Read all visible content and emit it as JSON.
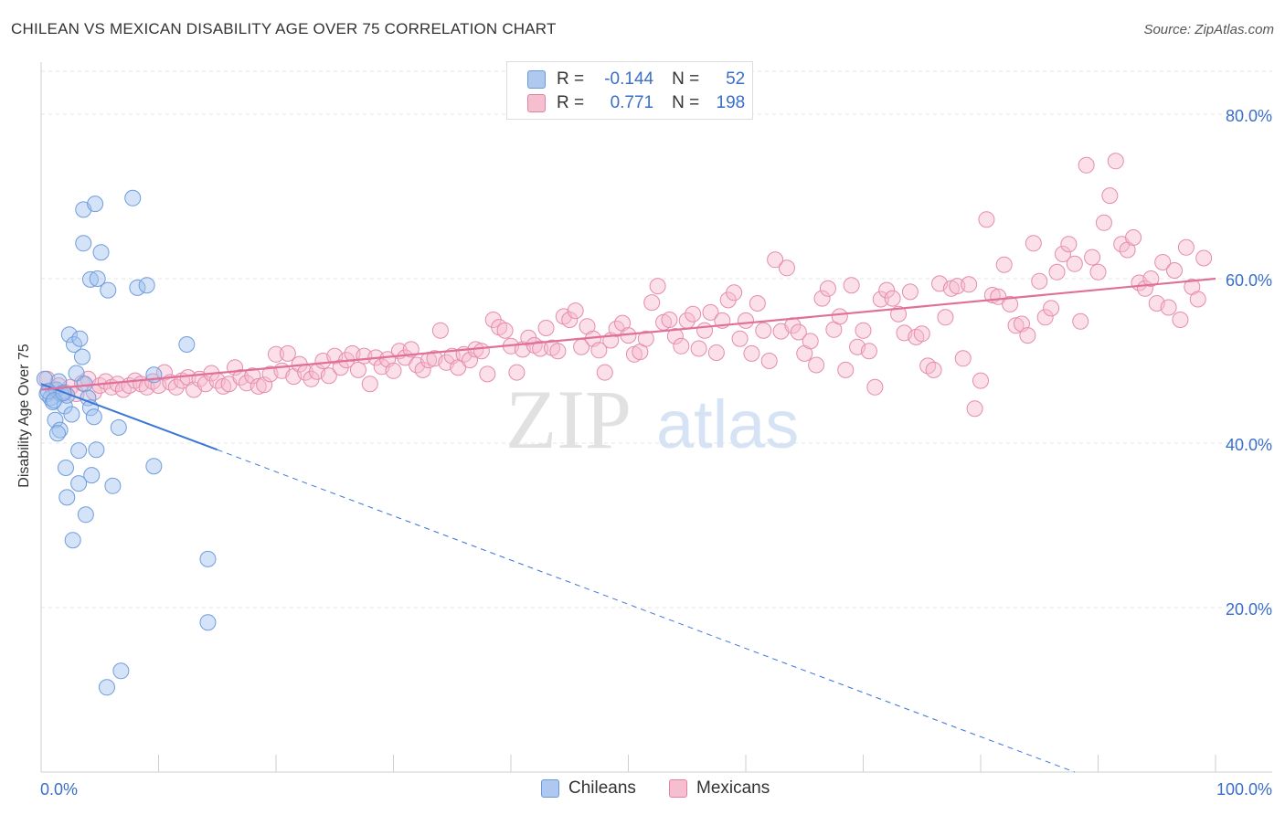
{
  "title": "CHILEAN VS MEXICAN DISABILITY AGE OVER 75 CORRELATION CHART",
  "source": "Source: ZipAtlas.com",
  "watermark": {
    "zip": "ZIP",
    "atlas": "atlas"
  },
  "legend": {
    "r_label": "R =",
    "n_label": "N =",
    "rows": [
      {
        "name": "Chileans",
        "r": "-0.144",
        "n": "52",
        "fill": "#aec8f0",
        "stroke": "#6a98dc"
      },
      {
        "name": "Mexicans",
        "r": "0.771",
        "n": "198",
        "fill": "#f6bfd0",
        "stroke": "#e67fa3"
      }
    ]
  },
  "chart_data": {
    "type": "scatter",
    "title": "CHILEAN VS MEXICAN DISABILITY AGE OVER 75 CORRELATION CHART",
    "xlabel": "",
    "ylabel": "Disability Age Over 75",
    "xlim": [
      0,
      100
    ],
    "ylim": [
      0,
      85
    ],
    "x_tick_labels": [
      "0.0%",
      "100.0%"
    ],
    "y_ticks": [
      20,
      40,
      60,
      80
    ],
    "y_tick_labels": [
      "20.0%",
      "40.0%",
      "60.0%",
      "80.0%"
    ],
    "grid": true,
    "colors": {
      "chileans": "#3a76d6",
      "mexicans": "#e0709a",
      "axis_text": "#3a6fc9"
    },
    "series": [
      {
        "name": "Chileans",
        "trend": {
          "x1": 0,
          "y1": 47.2,
          "x2": 15,
          "y2": 39.2,
          "dashed_to_x": 88,
          "dashed_to_y": 0
        },
        "points": [
          [
            0.5,
            46.0
          ],
          [
            0.8,
            45.5
          ],
          [
            1.0,
            45.0
          ],
          [
            1.3,
            46.5
          ],
          [
            1.5,
            47.5
          ],
          [
            1.7,
            46.0
          ],
          [
            2.0,
            44.5
          ],
          [
            2.2,
            45.8
          ],
          [
            2.4,
            53.2
          ],
          [
            2.6,
            43.5
          ],
          [
            2.8,
            52.0
          ],
          [
            3.0,
            48.5
          ],
          [
            3.3,
            52.7
          ],
          [
            3.5,
            50.5
          ],
          [
            3.7,
            47.2
          ],
          [
            4.0,
            45.5
          ],
          [
            4.2,
            44.3
          ],
          [
            4.5,
            43.2
          ],
          [
            1.2,
            42.8
          ],
          [
            1.6,
            41.6
          ],
          [
            1.4,
            41.2
          ],
          [
            3.2,
            39.1
          ],
          [
            4.7,
            39.2
          ],
          [
            2.1,
            37.0
          ],
          [
            4.3,
            36.1
          ],
          [
            3.2,
            35.1
          ],
          [
            6.1,
            34.8
          ],
          [
            2.2,
            33.4
          ],
          [
            3.8,
            31.3
          ],
          [
            2.7,
            28.2
          ],
          [
            3.6,
            68.4
          ],
          [
            4.6,
            69.1
          ],
          [
            3.6,
            64.3
          ],
          [
            5.1,
            63.2
          ],
          [
            4.2,
            59.9
          ],
          [
            4.8,
            60.0
          ],
          [
            5.7,
            58.6
          ],
          [
            7.8,
            69.8
          ],
          [
            8.2,
            58.9
          ],
          [
            9.0,
            59.2
          ],
          [
            12.4,
            52.0
          ],
          [
            9.6,
            48.3
          ],
          [
            6.6,
            41.9
          ],
          [
            9.6,
            37.2
          ],
          [
            14.2,
            25.9
          ],
          [
            14.2,
            18.2
          ],
          [
            6.8,
            12.3
          ],
          [
            5.6,
            10.3
          ],
          [
            0.3,
            47.8
          ],
          [
            0.6,
            46.3
          ],
          [
            1.1,
            45.2
          ],
          [
            1.9,
            46.1
          ]
        ]
      },
      {
        "name": "Mexicans",
        "trend": {
          "x1": 0,
          "y1": 46.5,
          "x2": 100,
          "y2": 60.0
        },
        "points": [
          [
            0.5,
            47.8
          ],
          [
            1.0,
            46.5
          ],
          [
            1.5,
            47.0
          ],
          [
            2.0,
            46.2
          ],
          [
            2.5,
            46.8
          ],
          [
            3.0,
            46.0
          ],
          [
            3.5,
            47.3
          ],
          [
            4.0,
            47.8
          ],
          [
            4.5,
            46.2
          ],
          [
            5.0,
            47.0
          ],
          [
            5.5,
            47.5
          ],
          [
            6.0,
            46.8
          ],
          [
            6.5,
            47.2
          ],
          [
            7.0,
            46.5
          ],
          [
            7.5,
            47.0
          ],
          [
            8.0,
            47.6
          ],
          [
            8.5,
            47.2
          ],
          [
            9.0,
            46.8
          ],
          [
            9.5,
            47.5
          ],
          [
            10.0,
            47.0
          ],
          [
            10.5,
            48.6
          ],
          [
            11.0,
            47.4
          ],
          [
            11.5,
            46.8
          ],
          [
            12.0,
            47.6
          ],
          [
            12.5,
            48.0
          ],
          [
            13.0,
            46.5
          ],
          [
            13.5,
            47.8
          ],
          [
            14.0,
            47.2
          ],
          [
            14.5,
            48.5
          ],
          [
            15.0,
            47.6
          ],
          [
            15.5,
            46.9
          ],
          [
            16.0,
            47.2
          ],
          [
            16.5,
            49.2
          ],
          [
            17.0,
            48.0
          ],
          [
            17.5,
            47.3
          ],
          [
            18.0,
            48.2
          ],
          [
            18.5,
            46.9
          ],
          [
            19.0,
            47.1
          ],
          [
            19.5,
            48.4
          ],
          [
            20.0,
            50.8
          ],
          [
            20.5,
            48.8
          ],
          [
            21.0,
            50.9
          ],
          [
            21.5,
            48.1
          ],
          [
            22.0,
            49.6
          ],
          [
            22.5,
            48.6
          ],
          [
            23.0,
            47.8
          ],
          [
            23.5,
            48.7
          ],
          [
            24.0,
            50.0
          ],
          [
            24.5,
            48.2
          ],
          [
            25.0,
            50.6
          ],
          [
            25.5,
            49.2
          ],
          [
            26.0,
            50.1
          ],
          [
            26.5,
            50.9
          ],
          [
            27.0,
            48.9
          ],
          [
            27.5,
            50.6
          ],
          [
            28.0,
            47.2
          ],
          [
            28.5,
            50.4
          ],
          [
            29.0,
            49.3
          ],
          [
            29.5,
            50.2
          ],
          [
            30.0,
            48.8
          ],
          [
            30.5,
            51.2
          ],
          [
            31.0,
            50.4
          ],
          [
            31.5,
            51.4
          ],
          [
            32.0,
            49.5
          ],
          [
            32.5,
            48.9
          ],
          [
            33.0,
            50.1
          ],
          [
            33.5,
            50.3
          ],
          [
            34.0,
            53.7
          ],
          [
            34.5,
            49.8
          ],
          [
            35.0,
            50.6
          ],
          [
            35.5,
            49.2
          ],
          [
            36.0,
            50.8
          ],
          [
            36.5,
            50.1
          ],
          [
            37.0,
            51.4
          ],
          [
            37.5,
            51.2
          ],
          [
            38.0,
            48.4
          ],
          [
            38.5,
            55.0
          ],
          [
            39.0,
            54.1
          ],
          [
            39.5,
            53.7
          ],
          [
            40.0,
            51.8
          ],
          [
            40.5,
            48.6
          ],
          [
            41.0,
            51.4
          ],
          [
            41.5,
            52.8
          ],
          [
            42.0,
            51.9
          ],
          [
            42.5,
            51.5
          ],
          [
            43.0,
            54.0
          ],
          [
            43.5,
            51.6
          ],
          [
            44.0,
            51.2
          ],
          [
            44.5,
            55.4
          ],
          [
            45.0,
            55.0
          ],
          [
            45.5,
            56.1
          ],
          [
            46.0,
            51.7
          ],
          [
            46.5,
            54.2
          ],
          [
            47.0,
            52.7
          ],
          [
            47.5,
            51.3
          ],
          [
            48.0,
            48.6
          ],
          [
            48.5,
            52.5
          ],
          [
            49.0,
            53.9
          ],
          [
            49.5,
            54.6
          ],
          [
            50.0,
            53.1
          ],
          [
            50.5,
            50.8
          ],
          [
            51.0,
            51.1
          ],
          [
            51.5,
            52.7
          ],
          [
            52.0,
            57.1
          ],
          [
            52.5,
            59.1
          ],
          [
            53.0,
            54.7
          ],
          [
            53.5,
            55.0
          ],
          [
            54.0,
            53.0
          ],
          [
            54.5,
            51.8
          ],
          [
            55.0,
            54.9
          ],
          [
            55.5,
            55.7
          ],
          [
            56.0,
            51.5
          ],
          [
            56.5,
            53.7
          ],
          [
            57.0,
            55.9
          ],
          [
            57.5,
            51.0
          ],
          [
            58.0,
            54.9
          ],
          [
            58.5,
            57.4
          ],
          [
            59.0,
            58.3
          ],
          [
            59.5,
            52.7
          ],
          [
            60.0,
            54.9
          ],
          [
            60.5,
            50.9
          ],
          [
            61.0,
            57.0
          ],
          [
            61.5,
            53.7
          ],
          [
            62.0,
            50.0
          ],
          [
            62.5,
            62.3
          ],
          [
            63.0,
            53.6
          ],
          [
            63.5,
            61.3
          ],
          [
            64.0,
            54.3
          ],
          [
            64.5,
            53.5
          ],
          [
            65.0,
            50.9
          ],
          [
            65.5,
            52.4
          ],
          [
            66.0,
            49.5
          ],
          [
            66.5,
            57.6
          ],
          [
            67.0,
            58.8
          ],
          [
            67.5,
            53.8
          ],
          [
            68.0,
            55.4
          ],
          [
            68.5,
            48.9
          ],
          [
            69.0,
            59.2
          ],
          [
            69.5,
            51.7
          ],
          [
            70.0,
            53.7
          ],
          [
            70.5,
            51.2
          ],
          [
            71.0,
            46.8
          ],
          [
            71.5,
            57.5
          ],
          [
            72.0,
            58.6
          ],
          [
            72.5,
            57.6
          ],
          [
            73.0,
            55.7
          ],
          [
            73.5,
            53.4
          ],
          [
            74.0,
            58.4
          ],
          [
            74.5,
            52.9
          ],
          [
            75.0,
            53.3
          ],
          [
            75.5,
            49.4
          ],
          [
            76.0,
            48.9
          ],
          [
            76.5,
            59.4
          ],
          [
            77.0,
            55.3
          ],
          [
            77.5,
            58.8
          ],
          [
            78.0,
            59.1
          ],
          [
            78.5,
            50.3
          ],
          [
            79.0,
            59.3
          ],
          [
            79.5,
            44.2
          ],
          [
            80.0,
            47.6
          ],
          [
            80.5,
            67.2
          ],
          [
            81.0,
            58.0
          ],
          [
            81.5,
            57.8
          ],
          [
            82.0,
            61.7
          ],
          [
            82.5,
            56.9
          ],
          [
            83.0,
            54.3
          ],
          [
            83.5,
            54.5
          ],
          [
            84.0,
            53.1
          ],
          [
            84.5,
            64.3
          ],
          [
            85.0,
            59.7
          ],
          [
            85.5,
            55.3
          ],
          [
            86.0,
            56.4
          ],
          [
            86.5,
            60.8
          ],
          [
            87.0,
            63.0
          ],
          [
            87.5,
            64.2
          ],
          [
            88.0,
            61.8
          ],
          [
            88.5,
            54.8
          ],
          [
            89.0,
            73.8
          ],
          [
            89.5,
            62.6
          ],
          [
            90.0,
            60.8
          ],
          [
            90.5,
            66.8
          ],
          [
            91.0,
            70.1
          ],
          [
            91.5,
            74.3
          ],
          [
            92.0,
            64.2
          ],
          [
            92.5,
            63.5
          ],
          [
            93.0,
            65.0
          ],
          [
            93.5,
            59.5
          ],
          [
            94.0,
            58.8
          ],
          [
            94.5,
            60.0
          ],
          [
            95.0,
            57.0
          ],
          [
            95.5,
            62.0
          ],
          [
            96.0,
            56.5
          ],
          [
            96.5,
            61.0
          ],
          [
            97.0,
            55.0
          ],
          [
            97.5,
            63.8
          ],
          [
            98.0,
            59.0
          ],
          [
            98.5,
            57.5
          ],
          [
            99.0,
            62.5
          ]
        ]
      }
    ]
  }
}
